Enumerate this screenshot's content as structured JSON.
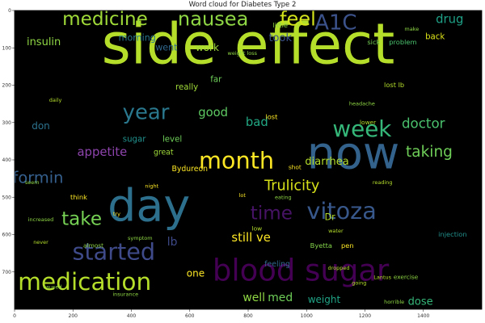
{
  "chart_data": {
    "type": "wordcloud",
    "title": "Word cloud for Diabetes Type 2",
    "background": "#000000",
    "x_ticks": [
      "0",
      "200",
      "400",
      "600",
      "800",
      "1000",
      "1200",
      "1400"
    ],
    "y_ticks": [
      "0",
      "100",
      "200",
      "300",
      "400",
      "500",
      "600",
      "700"
    ],
    "xlim": [
      0,
      1600
    ],
    "ylim": [
      800,
      0
    ],
    "words": [
      {
        "text": "side effect",
        "x": 800,
        "y": 100,
        "size": 150,
        "color": "#b5de2b"
      },
      {
        "text": "now",
        "x": 1160,
        "y": 390,
        "size": 120,
        "color": "#33638d"
      },
      {
        "text": "day",
        "x": 460,
        "y": 530,
        "size": 120,
        "color": "#2d708e"
      },
      {
        "text": "blood sugar",
        "x": 980,
        "y": 700,
        "size": 80,
        "color": "#440154"
      },
      {
        "text": "medication",
        "x": 240,
        "y": 730,
        "size": 64,
        "color": "#b5de2b"
      },
      {
        "text": "month",
        "x": 760,
        "y": 405,
        "size": 62,
        "color": "#fde725"
      },
      {
        "text": "week",
        "x": 1190,
        "y": 320,
        "size": 60,
        "color": "#35b779"
      },
      {
        "text": "started",
        "x": 340,
        "y": 650,
        "size": 62,
        "color": "#3e4a89"
      },
      {
        "text": "vitoza",
        "x": 1120,
        "y": 540,
        "size": 62,
        "color": "#38588c"
      },
      {
        "text": "year",
        "x": 450,
        "y": 275,
        "size": 56,
        "color": "#2a788e"
      },
      {
        "text": "nausea",
        "x": 680,
        "y": 25,
        "size": 52,
        "color": "#8fd744"
      },
      {
        "text": "medicine",
        "x": 310,
        "y": 25,
        "size": 50,
        "color": "#a0da39"
      },
      {
        "text": "take",
        "x": 230,
        "y": 560,
        "size": 50,
        "color": "#75d054"
      },
      {
        "text": "time",
        "x": 880,
        "y": 545,
        "size": 50,
        "color": "#471365"
      },
      {
        "text": "feel",
        "x": 970,
        "y": 25,
        "size": 52,
        "color": "#d2e21b"
      },
      {
        "text": "A1C",
        "x": 1100,
        "y": 35,
        "size": 56,
        "color": "#3b528b"
      },
      {
        "text": "Trulicity",
        "x": 950,
        "y": 470,
        "size": 38,
        "color": "#d8e219"
      },
      {
        "text": "Metformin",
        "x": 30,
        "y": 450,
        "size": 42,
        "color": "#355f8d"
      },
      {
        "text": "taking",
        "x": 1420,
        "y": 380,
        "size": 40,
        "color": "#6ece58"
      },
      {
        "text": "doctor",
        "x": 1400,
        "y": 305,
        "size": 36,
        "color": "#4ac16d"
      },
      {
        "text": "appetite",
        "x": 300,
        "y": 380,
        "size": 32,
        "color": "#8e44ad"
      },
      {
        "text": "good",
        "x": 680,
        "y": 275,
        "size": 32,
        "color": "#5ec962"
      },
      {
        "text": "diarrhea",
        "x": 1070,
        "y": 405,
        "size": 28,
        "color": "#b5de2b"
      },
      {
        "text": "still ve",
        "x": 810,
        "y": 610,
        "size": 32,
        "color": "#fde725"
      },
      {
        "text": "drug",
        "x": 1490,
        "y": 25,
        "size": 32,
        "color": "#1fa187"
      },
      {
        "text": "insulin",
        "x": 100,
        "y": 85,
        "size": 28,
        "color": "#8fd744"
      },
      {
        "text": "bad",
        "x": 830,
        "y": 300,
        "size": 32,
        "color": "#22a884"
      },
      {
        "text": "took",
        "x": 910,
        "y": 75,
        "size": 28,
        "color": "#3b528b"
      },
      {
        "text": "work",
        "x": 660,
        "y": 100,
        "size": 26,
        "color": "#a0da39"
      },
      {
        "text": "went",
        "x": 520,
        "y": 100,
        "size": 24,
        "color": "#31688e"
      },
      {
        "text": "morning",
        "x": 420,
        "y": 75,
        "size": 24,
        "color": "#2a788e"
      },
      {
        "text": "well",
        "x": 820,
        "y": 770,
        "size": 30,
        "color": "#8fd744"
      },
      {
        "text": "med",
        "x": 910,
        "y": 770,
        "size": 30,
        "color": "#6ece58"
      },
      {
        "text": "weight",
        "x": 1060,
        "y": 775,
        "size": 26,
        "color": "#20a486"
      },
      {
        "text": "dose",
        "x": 1390,
        "y": 780,
        "size": 28,
        "color": "#35b779"
      },
      {
        "text": "sugar",
        "x": 410,
        "y": 345,
        "size": 22,
        "color": "#21918c"
      },
      {
        "text": "level",
        "x": 540,
        "y": 345,
        "size": 22,
        "color": "#6ece58"
      },
      {
        "text": "great",
        "x": 510,
        "y": 380,
        "size": 20,
        "color": "#a0da39"
      },
      {
        "text": "don",
        "x": 90,
        "y": 310,
        "size": 26,
        "color": "#2c728e"
      },
      {
        "text": "one",
        "x": 620,
        "y": 705,
        "size": 26,
        "color": "#fde725"
      },
      {
        "text": "lb",
        "x": 540,
        "y": 620,
        "size": 30,
        "color": "#3e4a89"
      },
      {
        "text": "Bydureon",
        "x": 600,
        "y": 425,
        "size": 20,
        "color": "#fde725"
      },
      {
        "text": "Byetta",
        "x": 1050,
        "y": 630,
        "size": 18,
        "color": "#84d44b"
      },
      {
        "text": "feeling",
        "x": 900,
        "y": 680,
        "size": 20,
        "color": "#31688e"
      },
      {
        "text": "pen",
        "x": 1140,
        "y": 630,
        "size": 18,
        "color": "#fde725"
      },
      {
        "text": "Dr",
        "x": 1080,
        "y": 555,
        "size": 24,
        "color": "#b5de2b"
      },
      {
        "text": "lost lb",
        "x": 1300,
        "y": 200,
        "size": 18,
        "color": "#b5de2b"
      },
      {
        "text": "back",
        "x": 1440,
        "y": 70,
        "size": 22,
        "color": "#dde318"
      },
      {
        "text": "make",
        "x": 1360,
        "y": 50,
        "size": 14,
        "color": "#8fd744"
      },
      {
        "text": "little",
        "x": 910,
        "y": 40,
        "size": 18,
        "color": "#8fd744"
      },
      {
        "text": "lower",
        "x": 1210,
        "y": 300,
        "size": 16,
        "color": "#b5de2b"
      },
      {
        "text": "exercise",
        "x": 1340,
        "y": 715,
        "size": 16,
        "color": "#8fd744"
      },
      {
        "text": "lost",
        "x": 880,
        "y": 285,
        "size": 18,
        "color": "#fde725"
      },
      {
        "text": "sick",
        "x": 1230,
        "y": 85,
        "size": 18,
        "color": "#75d054"
      },
      {
        "text": "problem",
        "x": 1330,
        "y": 85,
        "size": 18,
        "color": "#4ac16d"
      },
      {
        "text": "really",
        "x": 590,
        "y": 205,
        "size": 22,
        "color": "#a0da39"
      },
      {
        "text": "far",
        "x": 690,
        "y": 185,
        "size": 22,
        "color": "#6ece58"
      },
      {
        "text": "think",
        "x": 220,
        "y": 500,
        "size": 18,
        "color": "#fde725"
      },
      {
        "text": "never",
        "x": 90,
        "y": 620,
        "size": 14,
        "color": "#b5de2b"
      },
      {
        "text": "almost",
        "x": 270,
        "y": 630,
        "size": 16,
        "color": "#8fd744"
      },
      {
        "text": "going",
        "x": 1180,
        "y": 730,
        "size": 14,
        "color": "#b5de2b"
      },
      {
        "text": "low",
        "x": 830,
        "y": 585,
        "size": 16,
        "color": "#b5de2b"
      },
      {
        "text": "Lantus",
        "x": 1260,
        "y": 715,
        "size": 14,
        "color": "#b5de2b"
      },
      {
        "text": "shot",
        "x": 960,
        "y": 420,
        "size": 16,
        "color": "#fde725"
      },
      {
        "text": "reading",
        "x": 1260,
        "y": 460,
        "size": 14,
        "color": "#b5de2b"
      },
      {
        "text": "weight loss",
        "x": 780,
        "y": 115,
        "size": 14,
        "color": "#8fd744"
      },
      {
        "text": "headache",
        "x": 1190,
        "y": 250,
        "size": 14,
        "color": "#8fd744"
      },
      {
        "text": "daily",
        "x": 140,
        "y": 240,
        "size": 14,
        "color": "#b5de2b"
      },
      {
        "text": "water",
        "x": 1100,
        "y": 590,
        "size": 14,
        "color": "#b5de2b"
      },
      {
        "text": "insurance",
        "x": 380,
        "y": 760,
        "size": 14,
        "color": "#8fd744"
      },
      {
        "text": "dropped",
        "x": 1110,
        "y": 690,
        "size": 14,
        "color": "#b5de2b"
      },
      {
        "text": "horrible",
        "x": 1300,
        "y": 780,
        "size": 14,
        "color": "#8fd744"
      },
      {
        "text": "caused",
        "x": 130,
        "y": 740,
        "size": 14,
        "color": "#8fd744"
      },
      {
        "text": "symptom",
        "x": 430,
        "y": 610,
        "size": 14,
        "color": "#8fd744"
      },
      {
        "text": "try",
        "x": 350,
        "y": 545,
        "size": 14,
        "color": "#fde725"
      },
      {
        "text": "increased",
        "x": 90,
        "y": 560,
        "size": 14,
        "color": "#8fd744"
      },
      {
        "text": "seem",
        "x": 60,
        "y": 460,
        "size": 14,
        "color": "#8fd744"
      },
      {
        "text": "night",
        "x": 470,
        "y": 470,
        "size": 14,
        "color": "#fde725"
      },
      {
        "text": "eating",
        "x": 920,
        "y": 500,
        "size": 14,
        "color": "#8fd744"
      },
      {
        "text": "lot",
        "x": 780,
        "y": 495,
        "size": 14,
        "color": "#fde725"
      },
      {
        "text": "injection",
        "x": 1500,
        "y": 600,
        "size": 18,
        "color": "#21918c"
      }
    ]
  }
}
